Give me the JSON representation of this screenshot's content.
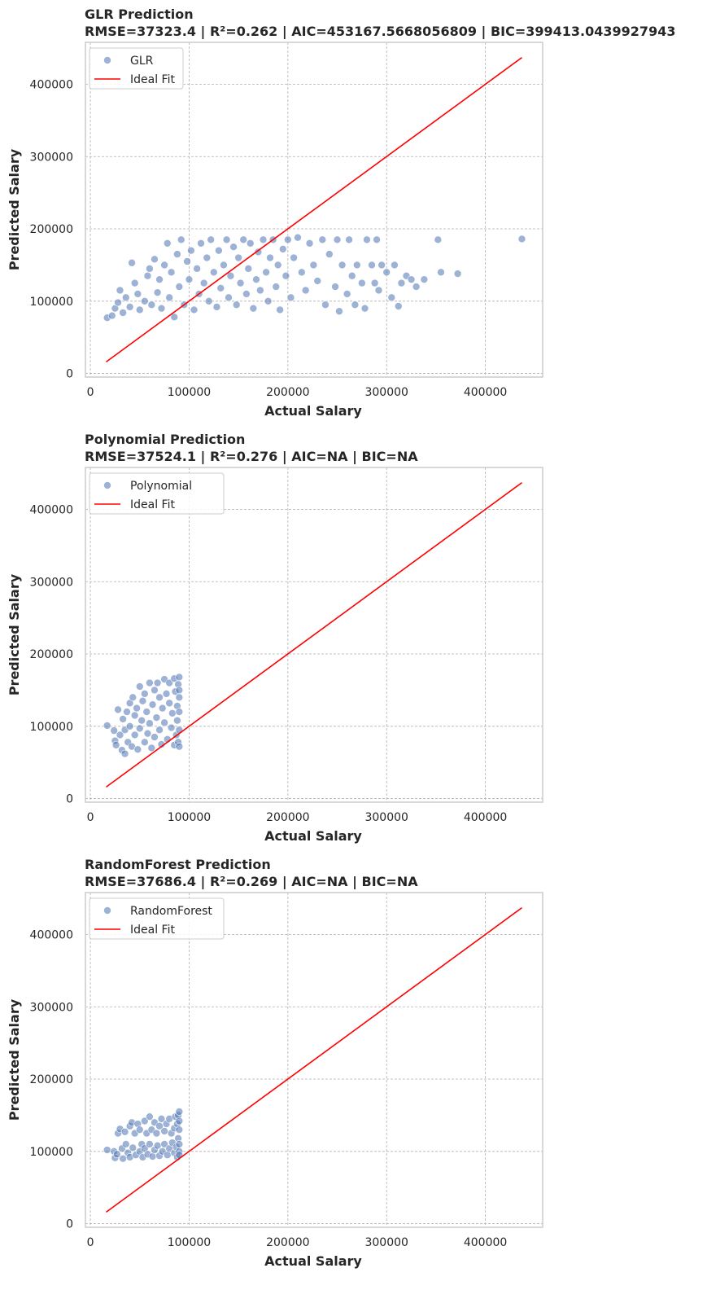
{
  "chart_data": [
    {
      "type": "scatter",
      "title": "GLR Prediction",
      "subtitle": "RMSE=37323.4 | R²=0.262 | AIC=453167.5668056809 | BIC=399413.0439927943",
      "xlabel": "Actual Salary",
      "ylabel": "Predicted Salary",
      "xlim": [
        -5000,
        458000
      ],
      "ylim": [
        -5000,
        458000
      ],
      "xticks": [
        "0",
        "100000",
        "200000",
        "300000",
        "400000"
      ],
      "yticks": [
        "0",
        "100000",
        "200000",
        "300000",
        "400000"
      ],
      "grid": true,
      "legend_position": "top-left",
      "colors": {
        "points": "#4c72b0",
        "ideal": "#ff0000",
        "grid": "#b0b0b0",
        "frame": "#cccccc"
      },
      "series": [
        {
          "name": "GLR",
          "kind": "scatter",
          "points": [
            [
              17000,
              77000
            ],
            [
              22000,
              80000
            ],
            [
              25000,
              90000
            ],
            [
              28000,
              98000
            ],
            [
              30000,
              115000
            ],
            [
              33000,
              84000
            ],
            [
              36000,
              105000
            ],
            [
              40000,
              92000
            ],
            [
              42000,
              153000
            ],
            [
              45000,
              125000
            ],
            [
              48000,
              110000
            ],
            [
              50000,
              88000
            ],
            [
              55000,
              100000
            ],
            [
              58000,
              135000
            ],
            [
              60000,
              145000
            ],
            [
              62000,
              95000
            ],
            [
              65000,
              158000
            ],
            [
              68000,
              112000
            ],
            [
              70000,
              130000
            ],
            [
              72000,
              90000
            ],
            [
              75000,
              150000
            ],
            [
              78000,
              180000
            ],
            [
              80000,
              105000
            ],
            [
              82000,
              140000
            ],
            [
              85000,
              78000
            ],
            [
              88000,
              165000
            ],
            [
              90000,
              120000
            ],
            [
              92000,
              185000
            ],
            [
              95000,
              95000
            ],
            [
              98000,
              155000
            ],
            [
              100000,
              130000
            ],
            [
              102000,
              170000
            ],
            [
              105000,
              88000
            ],
            [
              108000,
              145000
            ],
            [
              110000,
              110000
            ],
            [
              112000,
              180000
            ],
            [
              115000,
              125000
            ],
            [
              118000,
              160000
            ],
            [
              120000,
              100000
            ],
            [
              122000,
              185000
            ],
            [
              125000,
              140000
            ],
            [
              128000,
              92000
            ],
            [
              130000,
              170000
            ],
            [
              132000,
              118000
            ],
            [
              135000,
              150000
            ],
            [
              138000,
              185000
            ],
            [
              140000,
              105000
            ],
            [
              142000,
              135000
            ],
            [
              145000,
              175000
            ],
            [
              148000,
              95000
            ],
            [
              150000,
              160000
            ],
            [
              152000,
              125000
            ],
            [
              155000,
              185000
            ],
            [
              158000,
              110000
            ],
            [
              160000,
              145000
            ],
            [
              162000,
              180000
            ],
            [
              165000,
              90000
            ],
            [
              168000,
              130000
            ],
            [
              170000,
              168000
            ],
            [
              172000,
              115000
            ],
            [
              175000,
              185000
            ],
            [
              178000,
              140000
            ],
            [
              180000,
              100000
            ],
            [
              182000,
              160000
            ],
            [
              185000,
              185000
            ],
            [
              188000,
              120000
            ],
            [
              190000,
              150000
            ],
            [
              192000,
              88000
            ],
            [
              195000,
              172000
            ],
            [
              198000,
              135000
            ],
            [
              200000,
              185000
            ],
            [
              203000,
              105000
            ],
            [
              206000,
              160000
            ],
            [
              210000,
              188000
            ],
            [
              214000,
              140000
            ],
            [
              218000,
              115000
            ],
            [
              222000,
              180000
            ],
            [
              226000,
              150000
            ],
            [
              230000,
              128000
            ],
            [
              235000,
              185000
            ],
            [
              238000,
              95000
            ],
            [
              242000,
              165000
            ],
            [
              248000,
              120000
            ],
            [
              250000,
              185000
            ],
            [
              252000,
              86000
            ],
            [
              255000,
              150000
            ],
            [
              260000,
              110000
            ],
            [
              262000,
              185000
            ],
            [
              265000,
              135000
            ],
            [
              268000,
              95000
            ],
            [
              270000,
              150000
            ],
            [
              275000,
              125000
            ],
            [
              278000,
              90000
            ],
            [
              280000,
              185000
            ],
            [
              285000,
              150000
            ],
            [
              288000,
              125000
            ],
            [
              290000,
              185000
            ],
            [
              292000,
              115000
            ],
            [
              295000,
              150000
            ],
            [
              300000,
              140000
            ],
            [
              305000,
              105000
            ],
            [
              308000,
              150000
            ],
            [
              312000,
              93000
            ],
            [
              315000,
              125000
            ],
            [
              320000,
              135000
            ],
            [
              325000,
              130000
            ],
            [
              330000,
              120000
            ],
            [
              338000,
              130000
            ],
            [
              352000,
              185000
            ],
            [
              355000,
              140000
            ],
            [
              372000,
              138000
            ],
            [
              437000,
              186000
            ]
          ]
        },
        {
          "name": "Ideal Fit",
          "kind": "line",
          "x": [
            16000,
            437000
          ],
          "y": [
            16000,
            437000
          ]
        }
      ]
    },
    {
      "type": "scatter",
      "title": "Polynomial Prediction",
      "subtitle": "RMSE=37524.1 | R²=0.276 | AIC=NA | BIC=NA",
      "xlabel": "Actual Salary",
      "ylabel": "Predicted Salary",
      "xlim": [
        -5000,
        458000
      ],
      "ylim": [
        -5000,
        458000
      ],
      "xticks": [
        "0",
        "100000",
        "200000",
        "300000",
        "400000"
      ],
      "yticks": [
        "0",
        "100000",
        "200000",
        "300000",
        "400000"
      ],
      "grid": true,
      "legend_position": "top-left",
      "colors": {
        "points": "#4c72b0",
        "ideal": "#ff0000",
        "grid": "#b0b0b0",
        "frame": "#cccccc"
      },
      "series": [
        {
          "name": "Polynomial",
          "kind": "scatter",
          "points": [
            [
              17000,
              101000
            ],
            [
              24000,
              94000
            ],
            [
              25000,
              80000
            ],
            [
              26000,
              74000
            ],
            [
              28000,
              123000
            ],
            [
              30000,
              88000
            ],
            [
              32000,
              67000
            ],
            [
              33000,
              110000
            ],
            [
              35000,
              95000
            ],
            [
              35000,
              62000
            ],
            [
              37000,
              120000
            ],
            [
              38000,
              78000
            ],
            [
              40000,
              100000
            ],
            [
              40000,
              132000
            ],
            [
              42000,
              72000
            ],
            [
              43000,
              140000
            ],
            [
              45000,
              88000
            ],
            [
              45000,
              115000
            ],
            [
              47000,
              125000
            ],
            [
              48000,
              68000
            ],
            [
              50000,
              155000
            ],
            [
              50000,
              97000
            ],
            [
              52000,
              108000
            ],
            [
              53000,
              135000
            ],
            [
              55000,
              78000
            ],
            [
              55000,
              145000
            ],
            [
              57000,
              120000
            ],
            [
              58000,
              90000
            ],
            [
              60000,
              160000
            ],
            [
              60000,
              104000
            ],
            [
              62000,
              70000
            ],
            [
              63000,
              130000
            ],
            [
              65000,
              150000
            ],
            [
              65000,
              85000
            ],
            [
              67000,
              112000
            ],
            [
              68000,
              160000
            ],
            [
              70000,
              140000
            ],
            [
              70000,
              95000
            ],
            [
              72000,
              75000
            ],
            [
              73000,
              125000
            ],
            [
              75000,
              165000
            ],
            [
              75000,
              105000
            ],
            [
              77000,
              145000
            ],
            [
              78000,
              82000
            ],
            [
              80000,
              132000
            ],
            [
              80000,
              160000
            ],
            [
              82000,
              98000
            ],
            [
              83000,
              118000
            ],
            [
              85000,
              166000
            ],
            [
              85000,
              74000
            ],
            [
              86000,
              148000
            ],
            [
              87000,
              88000
            ],
            [
              88000,
              128000
            ],
            [
              88000,
              108000
            ],
            [
              89000,
              158000
            ],
            [
              89000,
              78000
            ],
            [
              90000,
              140000
            ],
            [
              90000,
              168000
            ],
            [
              90000,
              95000
            ],
            [
              90000,
              120000
            ],
            [
              90000,
              72000
            ],
            [
              90000,
              150000
            ]
          ]
        },
        {
          "name": "Ideal Fit",
          "kind": "line",
          "x": [
            16000,
            437000
          ],
          "y": [
            16000,
            437000
          ]
        }
      ]
    },
    {
      "type": "scatter",
      "title": "RandomForest Prediction",
      "subtitle": "RMSE=37686.4 | R²=0.269 | AIC=NA | BIC=NA",
      "xlabel": "Actual Salary",
      "ylabel": "Predicted Salary",
      "xlim": [
        -5000,
        458000
      ],
      "ylim": [
        -5000,
        458000
      ],
      "xticks": [
        "0",
        "100000",
        "200000",
        "300000",
        "400000"
      ],
      "yticks": [
        "0",
        "100000",
        "200000",
        "300000",
        "400000"
      ],
      "grid": true,
      "legend_position": "top-left",
      "colors": {
        "points": "#4c72b0",
        "ideal": "#ff0000",
        "grid": "#b0b0b0",
        "frame": "#cccccc"
      },
      "series": [
        {
          "name": "RandomForest",
          "kind": "scatter",
          "points": [
            [
              17000,
              102000
            ],
            [
              24000,
              100000
            ],
            [
              25000,
              91000
            ],
            [
              27000,
              96000
            ],
            [
              28000,
              125000
            ],
            [
              30000,
              131000
            ],
            [
              32000,
              104000
            ],
            [
              33000,
              90000
            ],
            [
              35000,
              127000
            ],
            [
              36000,
              110000
            ],
            [
              38000,
              98000
            ],
            [
              40000,
              135000
            ],
            [
              40000,
              92000
            ],
            [
              42000,
              140000
            ],
            [
              43000,
              105000
            ],
            [
              45000,
              125000
            ],
            [
              46000,
              95000
            ],
            [
              48000,
              138000
            ],
            [
              50000,
              100000
            ],
            [
              50000,
              130000
            ],
            [
              52000,
              110000
            ],
            [
              53000,
              92000
            ],
            [
              55000,
              142000
            ],
            [
              55000,
              104000
            ],
            [
              57000,
              125000
            ],
            [
              58000,
              96000
            ],
            [
              60000,
              148000
            ],
            [
              60000,
              110000
            ],
            [
              62000,
              130000
            ],
            [
              63000,
              93000
            ],
            [
              65000,
              140000
            ],
            [
              65000,
              102000
            ],
            [
              67000,
              125000
            ],
            [
              68000,
              108000
            ],
            [
              70000,
              135000
            ],
            [
              70000,
              94000
            ],
            [
              72000,
              145000
            ],
            [
              73000,
              100000
            ],
            [
              75000,
              128000
            ],
            [
              75000,
              110000
            ],
            [
              77000,
              138000
            ],
            [
              78000,
              95000
            ],
            [
              80000,
              145000
            ],
            [
              80000,
              104000
            ],
            [
              82000,
              125000
            ],
            [
              83000,
              112000
            ],
            [
              85000,
              132000
            ],
            [
              85000,
              98000
            ],
            [
              86000,
              148000
            ],
            [
              87000,
              106000
            ],
            [
              88000,
              138000
            ],
            [
              88000,
              92000
            ],
            [
              89000,
              150000
            ],
            [
              89000,
              118000
            ],
            [
              90000,
              155000
            ],
            [
              90000,
              100000
            ],
            [
              90000,
              130000
            ],
            [
              90000,
              110000
            ],
            [
              90000,
              142000
            ],
            [
              90000,
              95000
            ]
          ]
        },
        {
          "name": "Ideal Fit",
          "kind": "line",
          "x": [
            16000,
            437000
          ],
          "y": [
            16000,
            437000
          ]
        }
      ]
    }
  ]
}
